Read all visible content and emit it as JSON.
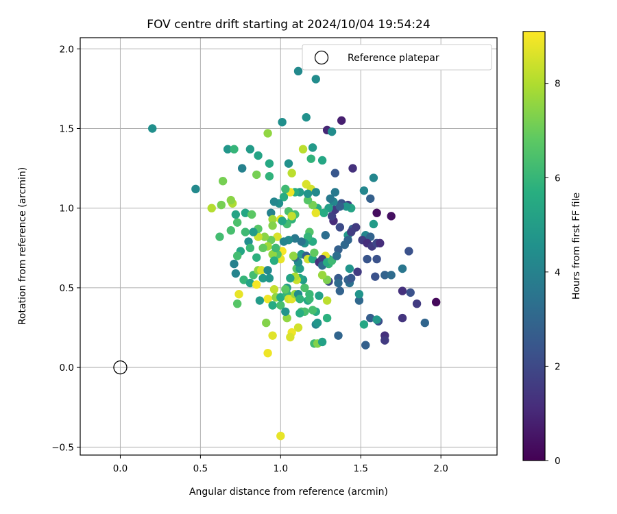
{
  "chart_data": {
    "type": "scatter",
    "title": "FOV centre drift starting at 2024/10/04 19:54:24",
    "xlabel": "Angular distance from reference (arcmin)",
    "ylabel": "Rotation from reference (arcmin)",
    "xlim": [
      -0.25,
      2.35
    ],
    "ylim": [
      -0.55,
      2.07
    ],
    "xticks": [
      "0.0",
      "0.5",
      "1.0",
      "1.5",
      "2.0"
    ],
    "yticks": [
      "−0.5",
      "0.0",
      "0.5",
      "1.0",
      "1.5",
      "2.0"
    ],
    "xtick_values": [
      0,
      0.5,
      1.0,
      1.5,
      2.0
    ],
    "ytick_values": [
      -0.5,
      0,
      0.5,
      1.0,
      1.5,
      2.0
    ],
    "grid": true,
    "colormap": "viridis",
    "colorbar": {
      "label": "Hours from first FF file",
      "range": [
        0,
        9.1
      ],
      "ticks": [
        "0",
        "2",
        "4",
        "6",
        "8"
      ],
      "tick_values": [
        0,
        2,
        4,
        6,
        8
      ]
    },
    "legend": {
      "position": "top-right",
      "entries": [
        "Reference platepar"
      ]
    },
    "reference_point": {
      "x": 0,
      "y": 0
    },
    "points": [
      [
        0.2,
        1.5,
        4.5
      ],
      [
        0.47,
        1.12,
        4.3
      ],
      [
        0.67,
        1.37,
        4.8
      ],
      [
        0.76,
        1.25,
        4.0
      ],
      [
        0.81,
        1.37,
        5.0
      ],
      [
        0.86,
        1.33,
        5.3
      ],
      [
        0.93,
        1.28,
        5.5
      ],
      [
        0.93,
        1.2,
        5.9
      ],
      [
        0.92,
        1.47,
        7.6
      ],
      [
        0.85,
        1.21,
        7.2
      ],
      [
        1.01,
        1.54,
        4.5
      ],
      [
        1.11,
        1.86,
        4.3
      ],
      [
        1.22,
        1.81,
        4.4
      ],
      [
        1.16,
        1.57,
        4.6
      ],
      [
        1.29,
        1.49,
        1.0
      ],
      [
        1.32,
        1.48,
        4.4
      ],
      [
        1.38,
        1.55,
        0.8
      ],
      [
        1.2,
        1.38,
        4.9
      ],
      [
        1.26,
        1.3,
        5.4
      ],
      [
        1.19,
        1.31,
        5.9
      ],
      [
        1.14,
        1.37,
        8.2
      ],
      [
        1.05,
        1.28,
        4.6
      ],
      [
        1.07,
        1.22,
        8.2
      ],
      [
        1.16,
        1.15,
        8.6
      ],
      [
        1.19,
        1.12,
        8.5
      ],
      [
        1.34,
        1.22,
        2.5
      ],
      [
        1.45,
        1.25,
        1.3
      ],
      [
        1.58,
        1.19,
        4.2
      ],
      [
        1.52,
        1.11,
        4.2
      ],
      [
        1.56,
        1.06,
        2.8
      ],
      [
        1.6,
        0.97,
        0.3
      ],
      [
        1.69,
        0.95,
        0.4
      ],
      [
        1.58,
        0.9,
        5.0
      ],
      [
        1.53,
        0.83,
        4.2
      ],
      [
        1.56,
        0.82,
        2.9
      ],
      [
        1.51,
        0.8,
        1.6
      ],
      [
        1.54,
        0.78,
        1.2
      ],
      [
        1.57,
        0.76,
        1.6
      ],
      [
        1.6,
        0.78,
        2.0
      ],
      [
        1.62,
        0.78,
        1.2
      ],
      [
        1.6,
        0.68,
        2.3
      ],
      [
        1.54,
        0.68,
        2.4
      ],
      [
        1.59,
        0.57,
        2.3
      ],
      [
        1.65,
        0.58,
        2.9
      ],
      [
        1.69,
        0.58,
        3.2
      ],
      [
        1.76,
        0.62,
        3.6
      ],
      [
        1.8,
        0.73,
        2.3
      ],
      [
        1.76,
        0.48,
        1.3
      ],
      [
        1.81,
        0.47,
        2.3
      ],
      [
        1.85,
        0.4,
        1.6
      ],
      [
        1.97,
        0.41,
        0.2
      ],
      [
        1.9,
        0.28,
        3.0
      ],
      [
        1.76,
        0.31,
        1.4
      ],
      [
        1.65,
        0.2,
        1.3
      ],
      [
        1.65,
        0.17,
        1.6
      ],
      [
        1.61,
        0.29,
        2.2
      ],
      [
        1.56,
        0.31,
        2.7
      ],
      [
        1.6,
        0.3,
        4.9
      ],
      [
        1.53,
        0.14,
        2.8
      ],
      [
        1.52,
        0.27,
        5.4
      ],
      [
        1.49,
        0.42,
        3.1
      ],
      [
        1.49,
        0.46,
        4.7
      ],
      [
        1.43,
        0.53,
        3.4
      ],
      [
        1.42,
        0.55,
        2.9
      ],
      [
        1.44,
        0.56,
        2.5
      ],
      [
        1.48,
        0.6,
        1.6
      ],
      [
        1.43,
        0.62,
        4.7
      ],
      [
        1.36,
        0.56,
        2.6
      ],
      [
        1.36,
        0.53,
        3.2
      ],
      [
        1.37,
        0.48,
        2.9
      ],
      [
        1.3,
        0.54,
        2.0
      ],
      [
        1.29,
        0.55,
        7.3
      ],
      [
        1.26,
        0.58,
        7.7
      ],
      [
        1.3,
        0.65,
        6.0
      ],
      [
        1.3,
        0.68,
        5.0
      ],
      [
        1.29,
        0.66,
        8.4
      ],
      [
        1.28,
        0.7,
        8.8
      ],
      [
        1.35,
        0.7,
        1.1
      ],
      [
        1.36,
        0.74,
        2.8
      ],
      [
        1.4,
        0.77,
        3.1
      ],
      [
        1.42,
        0.83,
        4.9
      ],
      [
        1.45,
        0.87,
        2.7
      ],
      [
        1.47,
        0.88,
        1.6
      ],
      [
        1.44,
        0.85,
        1.7
      ],
      [
        1.42,
        0.8,
        3.0
      ],
      [
        1.37,
        0.88,
        2.1
      ],
      [
        1.33,
        0.92,
        1.1
      ],
      [
        1.32,
        0.95,
        1.8
      ],
      [
        1.34,
        0.99,
        1.6
      ],
      [
        1.38,
        1.03,
        2.4
      ],
      [
        1.42,
        1.02,
        1.7
      ],
      [
        1.44,
        1.0,
        5.3
      ],
      [
        1.41,
        1.01,
        4.8
      ],
      [
        1.37,
        1.01,
        2.8
      ],
      [
        1.33,
        1.04,
        4.2
      ],
      [
        1.34,
        1.1,
        3.7
      ],
      [
        1.31,
        1.06,
        3.7
      ],
      [
        1.3,
        1.0,
        5.1
      ],
      [
        1.27,
        0.97,
        5.6
      ],
      [
        1.23,
        1.0,
        5.6
      ],
      [
        1.22,
        0.97,
        8.8
      ],
      [
        1.2,
        1.02,
        7.2
      ],
      [
        1.17,
        1.05,
        6.7
      ],
      [
        1.17,
        1.09,
        4.7
      ],
      [
        1.22,
        1.1,
        4.3
      ],
      [
        1.12,
        1.1,
        5.0
      ],
      [
        1.09,
        1.1,
        5.7
      ],
      [
        1.06,
        1.1,
        8.9
      ],
      [
        1.03,
        1.12,
        6.2
      ],
      [
        1.02,
        1.07,
        5.6
      ],
      [
        0.99,
        1.03,
        4.5
      ],
      [
        0.96,
        1.04,
        4.2
      ],
      [
        0.94,
        0.97,
        4.0
      ],
      [
        0.95,
        0.93,
        7.8
      ],
      [
        0.95,
        0.89,
        7.4
      ],
      [
        1.0,
        0.93,
        8.8
      ],
      [
        1.05,
        0.98,
        6.5
      ],
      [
        1.09,
        0.96,
        6.3
      ],
      [
        1.07,
        0.93,
        5.9
      ],
      [
        1.07,
        0.95,
        8.3
      ],
      [
        1.04,
        0.9,
        6.3
      ],
      [
        1.01,
        0.92,
        5.4
      ],
      [
        0.98,
        0.82,
        8.6
      ],
      [
        0.94,
        0.8,
        7.0
      ],
      [
        0.9,
        0.82,
        7.5
      ],
      [
        0.86,
        0.82,
        8.4
      ],
      [
        0.86,
        0.87,
        6.7
      ],
      [
        0.83,
        0.85,
        5.0
      ],
      [
        0.8,
        0.79,
        4.5
      ],
      [
        0.81,
        0.75,
        6.1
      ],
      [
        0.75,
        0.73,
        5.4
      ],
      [
        0.73,
        0.7,
        6.3
      ],
      [
        0.71,
        0.65,
        4.0
      ],
      [
        0.72,
        0.59,
        4.1
      ],
      [
        0.77,
        0.55,
        6.0
      ],
      [
        0.81,
        0.53,
        5.3
      ],
      [
        0.83,
        0.58,
        6.3
      ],
      [
        0.85,
        0.52,
        9.0
      ],
      [
        0.86,
        0.61,
        7.6
      ],
      [
        0.88,
        0.61,
        8.6
      ],
      [
        0.89,
        0.56,
        5.0
      ],
      [
        0.93,
        0.56,
        4.8
      ],
      [
        0.96,
        0.49,
        8.3
      ],
      [
        0.97,
        0.44,
        7.6
      ],
      [
        0.92,
        0.43,
        8.9
      ],
      [
        0.87,
        0.42,
        5.0
      ],
      [
        0.95,
        0.39,
        5.6
      ],
      [
        1.0,
        0.39,
        6.4
      ],
      [
        1.0,
        0.44,
        5.6
      ],
      [
        1.04,
        0.46,
        6.0
      ],
      [
        1.05,
        0.43,
        8.5
      ],
      [
        1.07,
        0.43,
        8.7
      ],
      [
        1.09,
        0.46,
        7.7
      ],
      [
        1.11,
        0.46,
        4.4
      ],
      [
        1.12,
        0.43,
        5.9
      ],
      [
        1.17,
        0.42,
        5.4
      ],
      [
        1.18,
        0.43,
        6.1
      ],
      [
        1.22,
        0.35,
        5.6
      ],
      [
        1.22,
        0.27,
        4.1
      ],
      [
        1.23,
        0.28,
        4.8
      ],
      [
        1.2,
        0.36,
        6.4
      ],
      [
        1.15,
        0.35,
        6.4
      ],
      [
        1.13,
        0.35,
        6.5
      ],
      [
        1.11,
        0.25,
        8.5
      ],
      [
        1.07,
        0.22,
        8.9
      ],
      [
        1.06,
        0.19,
        8.6
      ],
      [
        1.04,
        0.31,
        7.6
      ],
      [
        1.03,
        0.35,
        4.7
      ],
      [
        0.95,
        0.2,
        8.7
      ],
      [
        0.92,
        0.09,
        8.9
      ],
      [
        0.91,
        0.28,
        7.4
      ],
      [
        1.0,
        -0.43,
        8.8
      ],
      [
        1.21,
        0.15,
        6.2
      ],
      [
        1.23,
        0.15,
        7.4
      ],
      [
        1.26,
        0.16,
        5.2
      ],
      [
        1.36,
        0.2,
        3.0
      ],
      [
        1.29,
        0.31,
        5.8
      ],
      [
        1.29,
        0.42,
        8.2
      ],
      [
        1.24,
        0.45,
        5.2
      ],
      [
        1.18,
        0.46,
        6.1
      ],
      [
        1.15,
        0.5,
        6.5
      ],
      [
        1.14,
        0.55,
        5.0
      ],
      [
        1.12,
        0.56,
        5.4
      ],
      [
        1.1,
        0.55,
        8.4
      ],
      [
        1.09,
        0.57,
        8.0
      ],
      [
        1.06,
        0.56,
        5.3
      ],
      [
        1.04,
        0.5,
        5.1
      ],
      [
        1.03,
        0.49,
        6.8
      ],
      [
        1.1,
        0.62,
        6.7
      ],
      [
        1.12,
        0.62,
        5.1
      ],
      [
        1.11,
        0.66,
        4.4
      ],
      [
        1.09,
        0.69,
        3.3
      ],
      [
        1.08,
        0.7,
        7.6
      ],
      [
        1.13,
        0.71,
        4.9
      ],
      [
        1.16,
        0.7,
        2.8
      ],
      [
        1.17,
        0.68,
        8.5
      ],
      [
        1.2,
        0.68,
        5.6
      ],
      [
        1.21,
        0.72,
        6.9
      ],
      [
        1.24,
        0.66,
        1.3
      ],
      [
        1.26,
        0.68,
        1.7
      ],
      [
        1.26,
        0.64,
        3.2
      ],
      [
        1.29,
        0.66,
        5.6
      ],
      [
        1.32,
        0.67,
        6.2
      ],
      [
        1.28,
        0.83,
        3.3
      ],
      [
        1.2,
        0.79,
        5.6
      ],
      [
        1.18,
        0.85,
        6.6
      ],
      [
        1.17,
        0.82,
        6.0
      ],
      [
        1.15,
        0.78,
        4.7
      ],
      [
        1.13,
        0.79,
        3.5
      ],
      [
        1.09,
        0.81,
        3.7
      ],
      [
        1.05,
        0.8,
        4.3
      ],
      [
        1.02,
        0.79,
        4.1
      ],
      [
        1.01,
        0.73,
        9.0
      ],
      [
        1.0,
        0.68,
        8.8
      ],
      [
        0.98,
        0.71,
        6.6
      ],
      [
        0.95,
        0.71,
        7.6
      ],
      [
        0.92,
        0.76,
        7.8
      ],
      [
        0.89,
        0.75,
        6.9
      ],
      [
        0.85,
        0.69,
        5.8
      ],
      [
        0.78,
        0.85,
        6.2
      ],
      [
        0.73,
        0.91,
        6.5
      ],
      [
        0.72,
        0.96,
        5.3
      ],
      [
        0.7,
        1.03,
        8.0
      ],
      [
        0.69,
        1.05,
        7.5
      ],
      [
        0.63,
        1.02,
        7.2
      ],
      [
        0.57,
        1.0,
        8.1
      ],
      [
        0.62,
        0.82,
        6.3
      ],
      [
        0.69,
        0.86,
        6.4
      ],
      [
        0.78,
        0.97,
        5.4
      ],
      [
        0.82,
        0.96,
        6.8
      ],
      [
        0.64,
        1.17,
        7.2
      ],
      [
        0.71,
        1.37,
        6.0
      ],
      [
        0.73,
        0.4,
        6.7
      ],
      [
        0.74,
        0.46,
        8.8
      ],
      [
        0.97,
        0.75,
        6.2
      ],
      [
        0.96,
        0.67,
        5.7
      ],
      [
        0.92,
        0.61,
        4.3
      ],
      [
        1.12,
        0.34,
        5.7
      ],
      [
        1.35,
        0.7,
        3.3
      ]
    ]
  }
}
